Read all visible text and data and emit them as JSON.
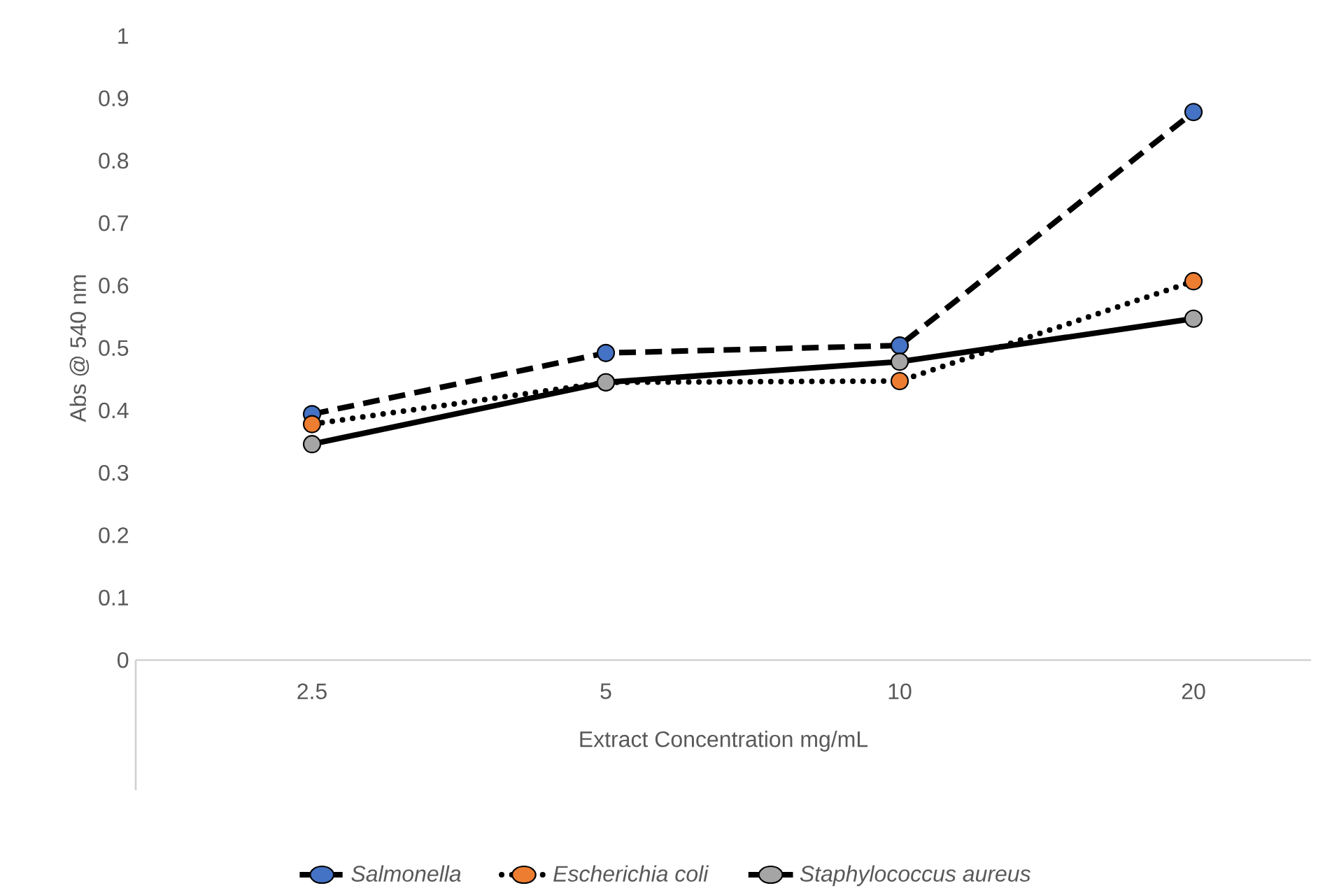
{
  "chart_data": {
    "type": "line",
    "xlabel": "Extract Concentration mg/mL",
    "ylabel": "Abs @ 540 nm",
    "categories": [
      "2.5",
      "5",
      "10",
      "20"
    ],
    "series": [
      {
        "name": "Salmonella",
        "color": "#4472c4",
        "line_style": "dashed",
        "values": [
          0.394,
          0.492,
          0.504,
          0.878
        ]
      },
      {
        "name": "Escherichia coli",
        "color": "#ed7d31",
        "line_style": "dotted",
        "values": [
          0.378,
          0.445,
          0.447,
          0.607
        ]
      },
      {
        "name": "Staphylococcus aureus",
        "color": "#a5a5a5",
        "line_style": "solid",
        "values": [
          0.346,
          0.445,
          0.478,
          0.547
        ]
      }
    ],
    "ylim": [
      0,
      1
    ],
    "yticks": [
      0,
      0.1,
      0.2,
      0.3,
      0.4,
      0.5,
      0.6,
      0.7,
      0.8,
      0.9,
      1
    ],
    "marker": "circle",
    "legend": "bottom",
    "grid": false
  }
}
